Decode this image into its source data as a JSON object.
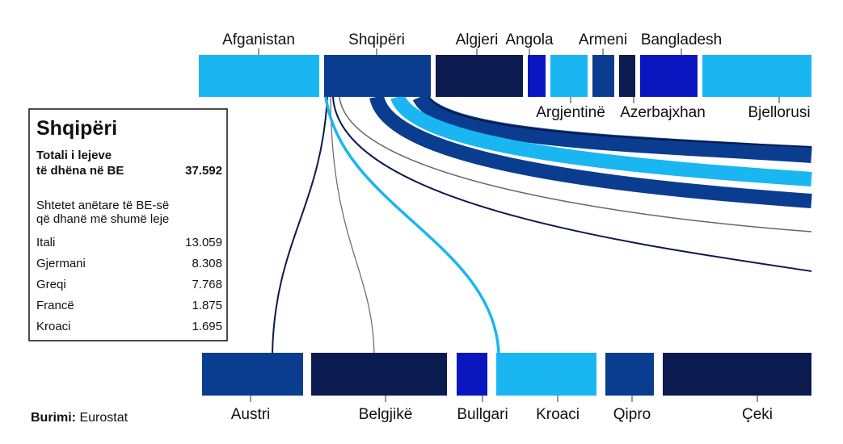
{
  "top_nodes": [
    "Afganistan",
    "Shqipëri",
    "Algjeri",
    "Angola",
    "Argjentinë",
    "Armeni",
    "Azerbajxhan",
    "Bangladesh",
    "Bjellorusi"
  ],
  "bottom_nodes": [
    "Austri",
    "Belgjikë",
    "Bullgari",
    "Kroaci",
    "Qipro",
    "Çeki"
  ],
  "info_box": {
    "title": "Shqipëri",
    "total_label": [
      "Totali i lejeve",
      "të dhëna në BE"
    ],
    "total_value": "37.592",
    "subtitle": [
      "Shtetet anëtare të BE-së",
      "që dhanë më shumë leje"
    ],
    "rows": [
      [
        "Itali",
        "13.059"
      ],
      [
        "Gjermani",
        "8.308"
      ],
      [
        "Greqi",
        "7.768"
      ],
      [
        "Francë",
        "1.875"
      ],
      [
        "Kroaci",
        "1.695"
      ]
    ]
  },
  "source": {
    "label": "Burimi",
    "value": "Eurostat"
  }
}
